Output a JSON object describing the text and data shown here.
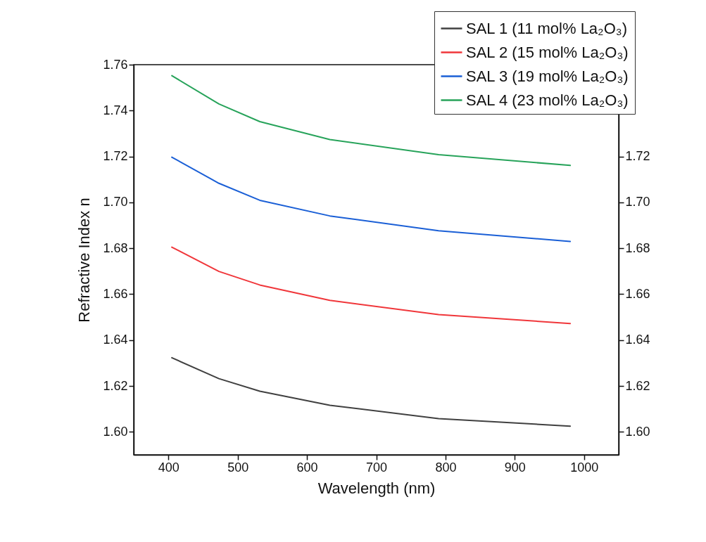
{
  "chart_data": {
    "type": "line",
    "xlabel": "Wavelength (nm)",
    "ylabel": "Refractive Index n",
    "x": [
      405,
      473,
      532,
      633,
      790,
      980
    ],
    "series": [
      {
        "name": "SAL 1 (11 mol% La₂O₃)",
        "color": "#404040",
        "values": [
          1.6323,
          1.6232,
          1.6177,
          1.6116,
          1.6058,
          1.6025
        ]
      },
      {
        "name": "SAL 2 (15 mol% La₂O₃)",
        "color": "#f0363a",
        "values": [
          1.6805,
          1.6699,
          1.664,
          1.6573,
          1.6511,
          1.6472
        ]
      },
      {
        "name": "SAL 3 (19 mol% La₂O₃)",
        "color": "#1a5fd6",
        "values": [
          1.7197,
          1.7083,
          1.7009,
          1.6941,
          1.6876,
          1.683
        ]
      },
      {
        "name": "SAL 4 (23 mol% La₂O₃)",
        "color": "#27a35a",
        "values": [
          1.7552,
          1.7429,
          1.7352,
          1.7274,
          1.7208,
          1.7161
        ]
      }
    ],
    "xlim": [
      350,
      1050
    ],
    "xticks": [
      400,
      500,
      600,
      700,
      800,
      900,
      1000
    ],
    "ylim": [
      1.59,
      1.76
    ],
    "yticks": [
      {
        "value": 1.6,
        "label": "1.60"
      },
      1.62,
      1.64,
      1.66,
      1.68,
      {
        "value": 1.7,
        "label": "1.70"
      },
      1.72,
      1.74,
      1.76
    ],
    "y2lim": [
      1.59,
      1.76
    ],
    "y2ticks": [
      {
        "value": 1.6,
        "label": "1.60"
      },
      1.62,
      1.64,
      1.66,
      1.68,
      {
        "value": 1.7,
        "label": "1.70"
      },
      1.72
    ],
    "legend": "top right",
    "grid": false
  }
}
